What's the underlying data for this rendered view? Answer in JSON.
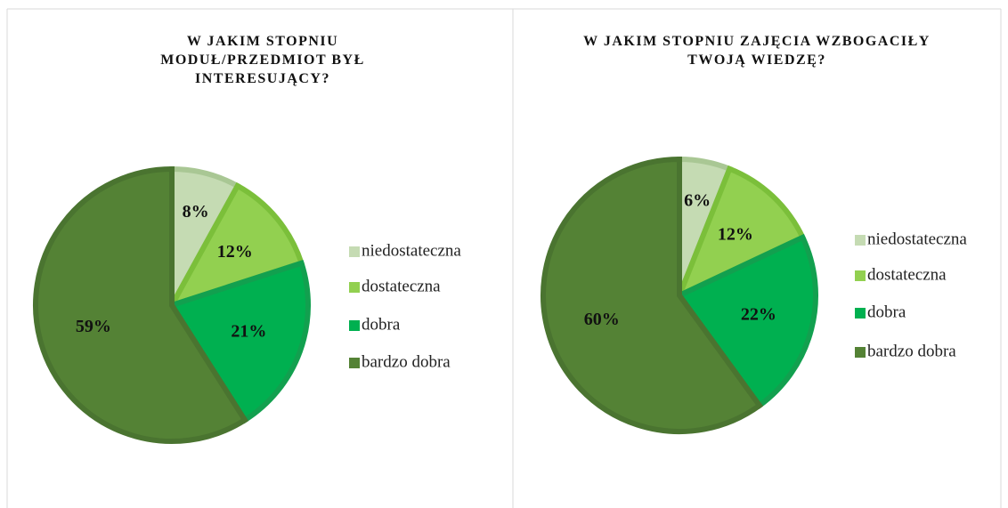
{
  "chart_data": [
    {
      "type": "pie",
      "title": "W JAKIM STOPNIU MODUŁ/PRZEDMIOT BYŁ INTERESUJĄCY?",
      "categories": [
        "niedostateczna",
        "dostateczna",
        "dobra",
        "bardzo dobra"
      ],
      "values": [
        8,
        12,
        21,
        59
      ],
      "value_labels": [
        "8%",
        "12%",
        "21%",
        "59%"
      ],
      "colors": [
        "#c5dbb3",
        "#92d050",
        "#00b050",
        "#548235"
      ],
      "legend": "right"
    },
    {
      "type": "pie",
      "title": "W JAKIM STOPNIU ZAJĘCIA WZBOGACIŁY TWOJĄ WIEDZĘ?",
      "categories": [
        "niedostateczna",
        "dostateczna",
        "dobra",
        "bardzo dobra"
      ],
      "values": [
        6,
        12,
        22,
        60
      ],
      "value_labels": [
        "6%",
        "12%",
        "22%",
        "60%"
      ],
      "colors": [
        "#c5dbb3",
        "#92d050",
        "#00b050",
        "#548235"
      ],
      "legend": "right"
    }
  ]
}
